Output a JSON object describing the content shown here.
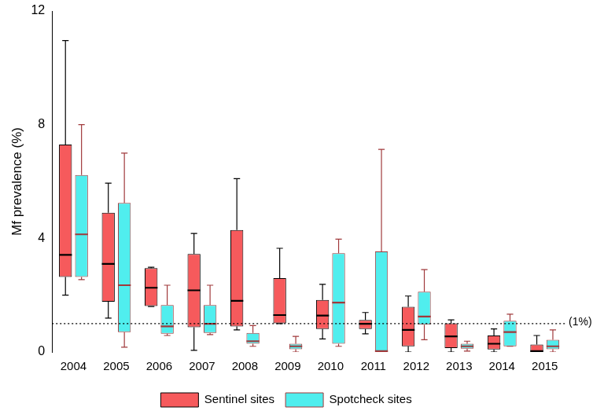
{
  "chart_data": {
    "type": "boxplot",
    "y_label": "Mf prevalence (%)",
    "categories": [
      "2004",
      "2005",
      "2006",
      "2007",
      "2008",
      "2009",
      "2010",
      "2011",
      "2012",
      "2013",
      "2014",
      "2015"
    ],
    "series": [
      {
        "name": "Sentinel sites",
        "color": "#f65a5c",
        "min": [
          2.0,
          1.19,
          1.6,
          0.06,
          0.78,
          1.0,
          0.46,
          0.64,
          0.0,
          0.0,
          0.0,
          0.0
        ],
        "q1": [
          2.64,
          1.77,
          1.62,
          0.87,
          0.9,
          1.01,
          0.81,
          0.81,
          0.2,
          0.14,
          0.09,
          0.0
        ],
        "median": [
          3.42,
          3.1,
          2.26,
          2.17,
          1.8,
          1.3,
          1.28,
          0.99,
          0.78,
          0.55,
          0.29,
          0.03
        ],
        "q3": [
          7.3,
          4.9,
          2.95,
          3.45,
          4.29,
          2.6,
          1.83,
          1.13,
          1.59,
          1.01,
          0.58,
          0.26
        ],
        "max": [
          10.96,
          5.94,
          2.98,
          4.17,
          6.1,
          3.65,
          2.38,
          1.39,
          1.97,
          1.13,
          0.81,
          0.58
        ]
      },
      {
        "name": "Spotcheck sites",
        "color": "#50eeee",
        "min": [
          2.55,
          0.17,
          0.58,
          0.61,
          0.2,
          0.0,
          0.2,
          0.0,
          0.43,
          0.03,
          0.2,
          0.0
        ],
        "q1": [
          2.64,
          0.7,
          0.64,
          0.67,
          0.29,
          0.1,
          0.29,
          0.0,
          0.96,
          0.12,
          0.2,
          0.1
        ],
        "median": [
          4.14,
          2.35,
          0.9,
          0.99,
          0.38,
          0.2,
          1.74,
          0.03,
          1.25,
          0.2,
          0.7,
          0.2
        ],
        "q3": [
          6.23,
          5.25,
          1.65,
          1.65,
          0.67,
          0.29,
          3.48,
          3.54,
          2.12,
          0.29,
          1.1,
          0.43
        ],
        "max": [
          8.0,
          7.0,
          2.35,
          2.35,
          0.93,
          0.55,
          3.97,
          7.13,
          2.9,
          0.38,
          1.33,
          0.78
        ]
      }
    ],
    "annotations": [
      {
        "y": 1,
        "label": "(1%)"
      }
    ],
    "ylim": [
      0,
      12
    ],
    "yticks": [
      0,
      4,
      8,
      12
    ],
    "grid": false,
    "legend": "bottom"
  }
}
